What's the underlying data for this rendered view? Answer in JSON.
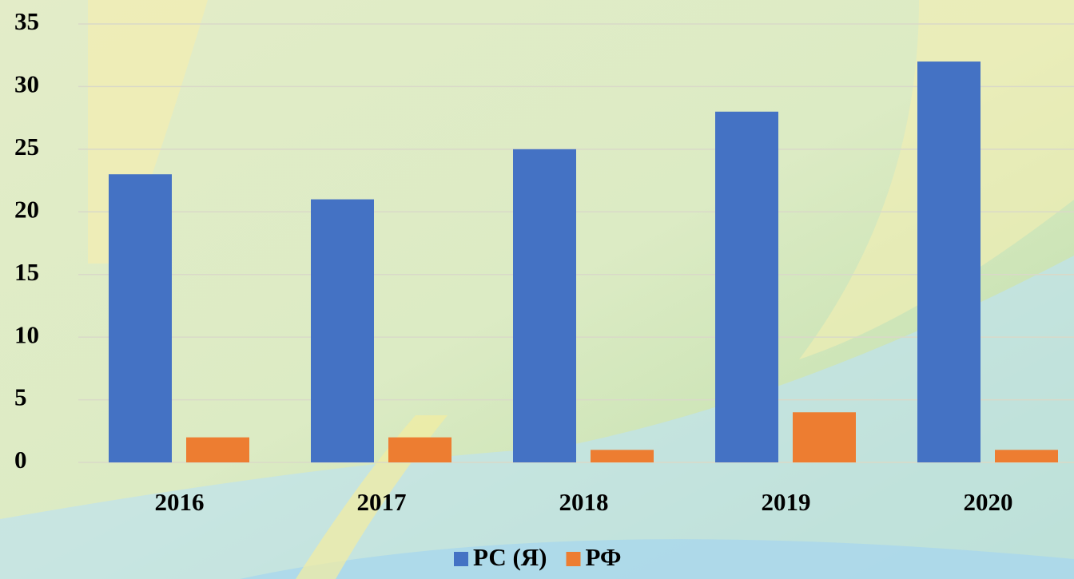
{
  "chart_data": {
    "type": "bar",
    "categories": [
      "2016",
      "2017",
      "2018",
      "2019",
      "2020"
    ],
    "series": [
      {
        "name": "РС (Я)",
        "color": "#4472c4",
        "values": [
          23,
          21,
          25,
          28,
          32
        ]
      },
      {
        "name": "РФ",
        "color": "#ed7d31",
        "values": [
          2,
          2,
          1,
          4,
          1
        ]
      }
    ],
    "ylim": [
      0,
      35
    ],
    "yticks": [
      0,
      5,
      10,
      15,
      20,
      25,
      30,
      35
    ],
    "grid": true,
    "legend": "bottom"
  }
}
